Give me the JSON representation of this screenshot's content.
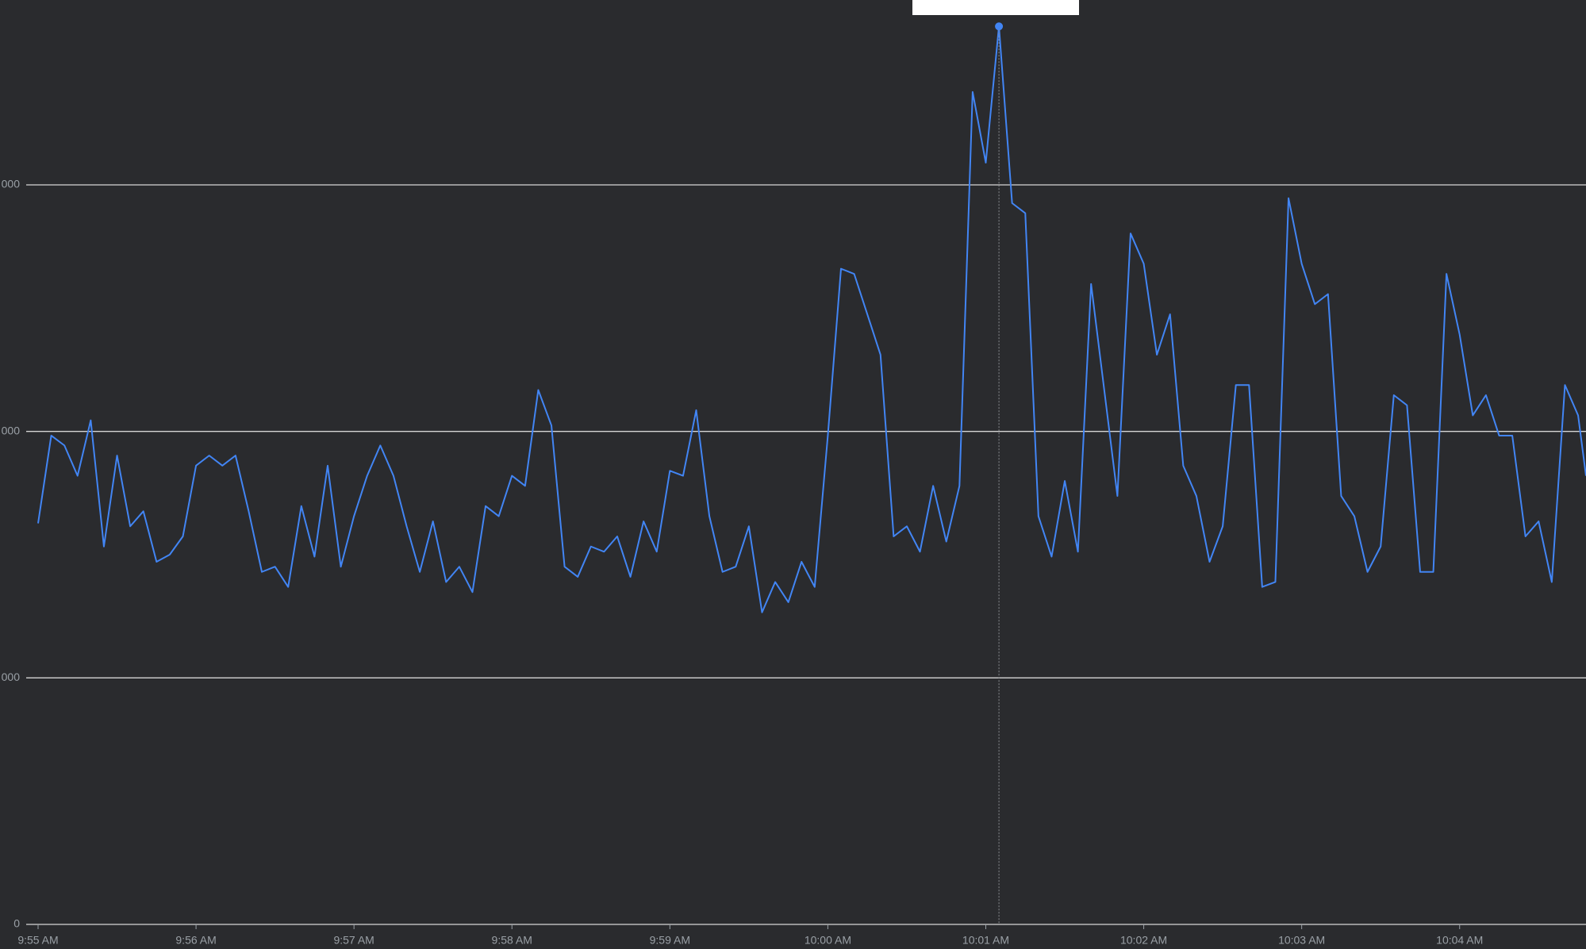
{
  "chart_data": {
    "type": "line",
    "color": "#4285f4",
    "grid": true,
    "xlim": [
      0,
      588
    ],
    "ylim": [
      0,
      3750
    ],
    "yticks": [
      0,
      {
        "value": 1000,
        "label": "000"
      },
      {
        "value": 2000,
        "label": "000"
      },
      {
        "value": 3000,
        "label": "000"
      }
    ],
    "xticks": [
      {
        "value": 0,
        "label": "9:55 AM"
      },
      {
        "value": 60,
        "label": "9:56 AM"
      },
      {
        "value": 120,
        "label": "9:57 AM"
      },
      {
        "value": 180,
        "label": "9:58 AM"
      },
      {
        "value": 240,
        "label": "9:59 AM"
      },
      {
        "value": 300,
        "label": "10:00 AM"
      },
      {
        "value": 360,
        "label": "10:01 AM"
      },
      {
        "value": 420,
        "label": "10:02 AM"
      },
      {
        "value": 480,
        "label": "10:03 AM"
      },
      {
        "value": 540,
        "label": "10:04 AM"
      }
    ],
    "x": [
      0,
      5,
      10,
      15,
      20,
      25,
      30,
      35,
      40,
      45,
      50,
      55,
      60,
      65,
      70,
      75,
      80,
      85,
      90,
      95,
      100,
      105,
      110,
      115,
      120,
      125,
      130,
      135,
      140,
      145,
      150,
      155,
      160,
      165,
      170,
      175,
      180,
      185,
      190,
      195,
      200,
      205,
      210,
      215,
      220,
      225,
      230,
      235,
      240,
      245,
      250,
      255,
      260,
      265,
      270,
      275,
      280,
      285,
      290,
      295,
      300,
      305,
      310,
      315,
      320,
      325,
      330,
      335,
      340,
      345,
      350,
      355,
      360,
      365,
      370,
      375,
      380,
      385,
      390,
      395,
      400,
      405,
      410,
      415,
      420,
      425,
      430,
      435,
      440,
      445,
      450,
      455,
      460,
      465,
      470,
      475,
      480,
      485,
      490,
      495,
      500,
      505,
      510,
      515,
      520,
      525,
      530,
      535,
      540,
      545,
      550,
      555,
      560,
      565,
      570,
      575,
      580,
      585,
      588
    ],
    "values": [
      1627,
      1983,
      1943,
      1820,
      2045,
      1533,
      1902,
      1615,
      1676,
      1471,
      1500,
      1574,
      1861,
      1902,
      1861,
      1902,
      1676,
      1430,
      1451,
      1369,
      1697,
      1492,
      1861,
      1451,
      1656,
      1820,
      1943,
      1820,
      1615,
      1430,
      1635,
      1389,
      1451,
      1348,
      1697,
      1656,
      1820,
      1779,
      2168,
      2024,
      1451,
      1410,
      1533,
      1512,
      1574,
      1410,
      1635,
      1512,
      1840,
      1820,
      2086,
      1656,
      1430,
      1451,
      1615,
      1266,
      1389,
      1307,
      1471,
      1369,
      1983,
      2660,
      2639,
      2475,
      2311,
      1574,
      1615,
      1512,
      1779,
      1553,
      1779,
      3377,
      3090,
      3643,
      2926,
      2885,
      1656,
      1492,
      1799,
      1512,
      2598,
      2168,
      1738,
      2803,
      2680,
      2311,
      2475,
      1861,
      1738,
      1471,
      1615,
      2188,
      2188,
      1369,
      1389,
      2946,
      2680,
      2516,
      2557,
      1738,
      1656,
      1430,
      1533,
      2147,
      2106,
      1430,
      1430,
      2639,
      2393,
      2065,
      2147,
      1983,
      1983,
      1574,
      1635,
      1389,
      2188,
      2065,
      1820
    ]
  }
}
